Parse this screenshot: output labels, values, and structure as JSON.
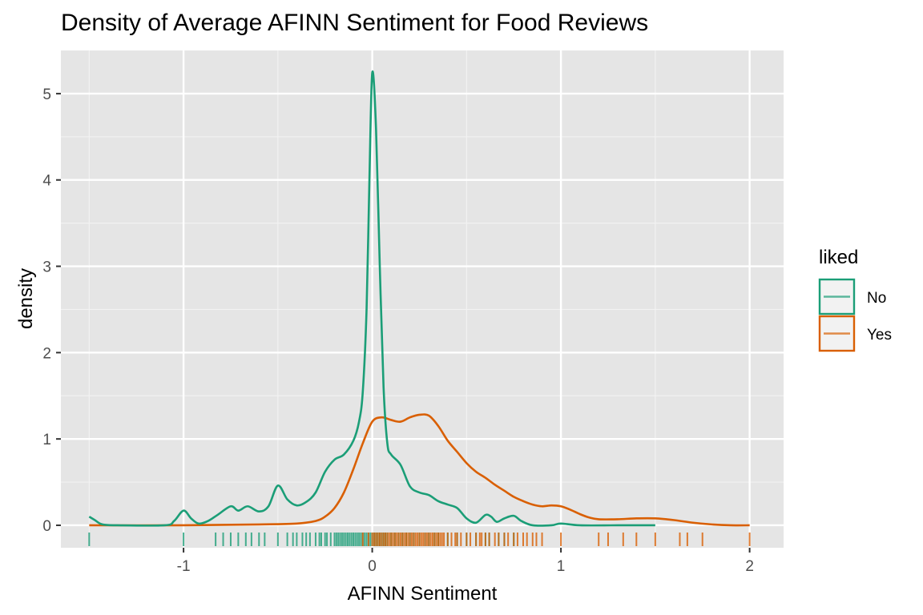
{
  "chart_data": {
    "type": "line",
    "subtype": "density",
    "title": "Density of Average AFINN Sentiment for Food Reviews",
    "xlabel": "AFINN Sentiment",
    "ylabel": "density",
    "xlim": [
      -1.65,
      2.18
    ],
    "ylim": [
      -0.26,
      5.5
    ],
    "x_ticks": [
      -1,
      0,
      1,
      2
    ],
    "x_tick_labels": [
      "-1",
      "0",
      "1",
      "2"
    ],
    "y_ticks": [
      0,
      1,
      2,
      3,
      4,
      5
    ],
    "y_tick_labels": [
      "0",
      "1",
      "2",
      "3",
      "4",
      "5"
    ],
    "grid": true,
    "background": "#e5e5e5",
    "legend": {
      "title": "liked",
      "position": "right",
      "entries": [
        "No",
        "Yes"
      ]
    },
    "series": [
      {
        "name": "No",
        "color": "#1b9e77",
        "points": [
          [
            -1.5,
            0.1
          ],
          [
            -1.47,
            0.06
          ],
          [
            -1.43,
            0.01
          ],
          [
            -1.35,
            0.0
          ],
          [
            -1.1,
            0.0
          ],
          [
            -1.05,
            0.05
          ],
          [
            -1.0,
            0.17
          ],
          [
            -0.96,
            0.08
          ],
          [
            -0.92,
            0.02
          ],
          [
            -0.87,
            0.05
          ],
          [
            -0.82,
            0.12
          ],
          [
            -0.75,
            0.22
          ],
          [
            -0.71,
            0.17
          ],
          [
            -0.66,
            0.22
          ],
          [
            -0.6,
            0.16
          ],
          [
            -0.55,
            0.22
          ],
          [
            -0.5,
            0.46
          ],
          [
            -0.45,
            0.3
          ],
          [
            -0.4,
            0.23
          ],
          [
            -0.35,
            0.27
          ],
          [
            -0.3,
            0.38
          ],
          [
            -0.25,
            0.62
          ],
          [
            -0.2,
            0.76
          ],
          [
            -0.15,
            0.82
          ],
          [
            -0.1,
            0.98
          ],
          [
            -0.07,
            1.2
          ],
          [
            -0.05,
            1.55
          ],
          [
            -0.03,
            2.5
          ],
          [
            -0.015,
            4.0
          ],
          [
            0.0,
            5.24
          ],
          [
            0.02,
            4.6
          ],
          [
            0.04,
            3.0
          ],
          [
            0.06,
            1.6
          ],
          [
            0.08,
            0.95
          ],
          [
            0.1,
            0.82
          ],
          [
            0.15,
            0.7
          ],
          [
            0.2,
            0.45
          ],
          [
            0.25,
            0.38
          ],
          [
            0.3,
            0.35
          ],
          [
            0.35,
            0.28
          ],
          [
            0.4,
            0.24
          ],
          [
            0.45,
            0.2
          ],
          [
            0.5,
            0.08
          ],
          [
            0.55,
            0.03
          ],
          [
            0.6,
            0.12
          ],
          [
            0.63,
            0.1
          ],
          [
            0.66,
            0.04
          ],
          [
            0.7,
            0.08
          ],
          [
            0.75,
            0.11
          ],
          [
            0.79,
            0.05
          ],
          [
            0.85,
            0.0
          ],
          [
            0.95,
            0.0
          ],
          [
            1.0,
            0.02
          ],
          [
            1.1,
            0.0
          ],
          [
            1.3,
            0.0
          ],
          [
            1.5,
            0.0
          ]
        ],
        "rug": [
          -1.5,
          -1.0,
          -0.83,
          -0.79,
          -0.75,
          -0.71,
          -0.67,
          -0.64,
          -0.6,
          -0.57,
          -0.5,
          -0.45,
          -0.42,
          -0.4,
          -0.37,
          -0.35,
          -0.33,
          -0.3,
          -0.28,
          -0.27,
          -0.25,
          -0.24,
          -0.22,
          -0.2,
          -0.19,
          -0.18,
          -0.17,
          -0.16,
          -0.15,
          -0.14,
          -0.13,
          -0.12,
          -0.11,
          -0.1,
          -0.09,
          -0.08,
          -0.07,
          -0.06,
          -0.05,
          -0.04,
          -0.03,
          -0.02,
          -0.01,
          0.0,
          0.01,
          0.02,
          0.03,
          0.04,
          0.05,
          0.06,
          0.07,
          0.08,
          0.1,
          0.12,
          0.14,
          0.16,
          0.18,
          0.2,
          0.22,
          0.25,
          0.28,
          0.3,
          0.33,
          0.35,
          0.4,
          0.45,
          0.5,
          0.55,
          0.6,
          0.62,
          0.67,
          0.7,
          0.75
        ]
      },
      {
        "name": "Yes",
        "color": "#d95f02",
        "points": [
          [
            -1.5,
            0.0
          ],
          [
            -1.0,
            0.0
          ],
          [
            -0.6,
            0.01
          ],
          [
            -0.4,
            0.02
          ],
          [
            -0.3,
            0.05
          ],
          [
            -0.25,
            0.1
          ],
          [
            -0.2,
            0.2
          ],
          [
            -0.15,
            0.38
          ],
          [
            -0.1,
            0.65
          ],
          [
            -0.05,
            0.95
          ],
          [
            0.0,
            1.2
          ],
          [
            0.05,
            1.25
          ],
          [
            0.1,
            1.22
          ],
          [
            0.15,
            1.2
          ],
          [
            0.2,
            1.25
          ],
          [
            0.25,
            1.28
          ],
          [
            0.3,
            1.27
          ],
          [
            0.35,
            1.15
          ],
          [
            0.4,
            0.98
          ],
          [
            0.45,
            0.85
          ],
          [
            0.5,
            0.72
          ],
          [
            0.55,
            0.62
          ],
          [
            0.6,
            0.55
          ],
          [
            0.65,
            0.47
          ],
          [
            0.7,
            0.4
          ],
          [
            0.75,
            0.33
          ],
          [
            0.8,
            0.28
          ],
          [
            0.85,
            0.24
          ],
          [
            0.9,
            0.22
          ],
          [
            0.95,
            0.23
          ],
          [
            1.0,
            0.22
          ],
          [
            1.05,
            0.18
          ],
          [
            1.1,
            0.13
          ],
          [
            1.15,
            0.09
          ],
          [
            1.2,
            0.07
          ],
          [
            1.3,
            0.07
          ],
          [
            1.4,
            0.08
          ],
          [
            1.5,
            0.08
          ],
          [
            1.6,
            0.06
          ],
          [
            1.7,
            0.03
          ],
          [
            1.8,
            0.01
          ],
          [
            1.9,
            0.0
          ],
          [
            2.0,
            0.0
          ]
        ],
        "rug": [
          -0.05,
          -0.02,
          0.0,
          0.01,
          0.02,
          0.03,
          0.04,
          0.05,
          0.06,
          0.07,
          0.08,
          0.09,
          0.1,
          0.11,
          0.12,
          0.13,
          0.14,
          0.15,
          0.16,
          0.17,
          0.18,
          0.19,
          0.2,
          0.21,
          0.22,
          0.23,
          0.24,
          0.25,
          0.26,
          0.27,
          0.28,
          0.29,
          0.3,
          0.31,
          0.32,
          0.33,
          0.34,
          0.35,
          0.36,
          0.37,
          0.38,
          0.4,
          0.42,
          0.44,
          0.45,
          0.47,
          0.5,
          0.52,
          0.55,
          0.57,
          0.58,
          0.6,
          0.62,
          0.65,
          0.67,
          0.7,
          0.72,
          0.75,
          0.77,
          0.8,
          0.82,
          0.85,
          0.87,
          0.9,
          1.0,
          1.2,
          1.25,
          1.33,
          1.4,
          1.5,
          1.63,
          1.67,
          1.75,
          2.0
        ]
      }
    ]
  }
}
